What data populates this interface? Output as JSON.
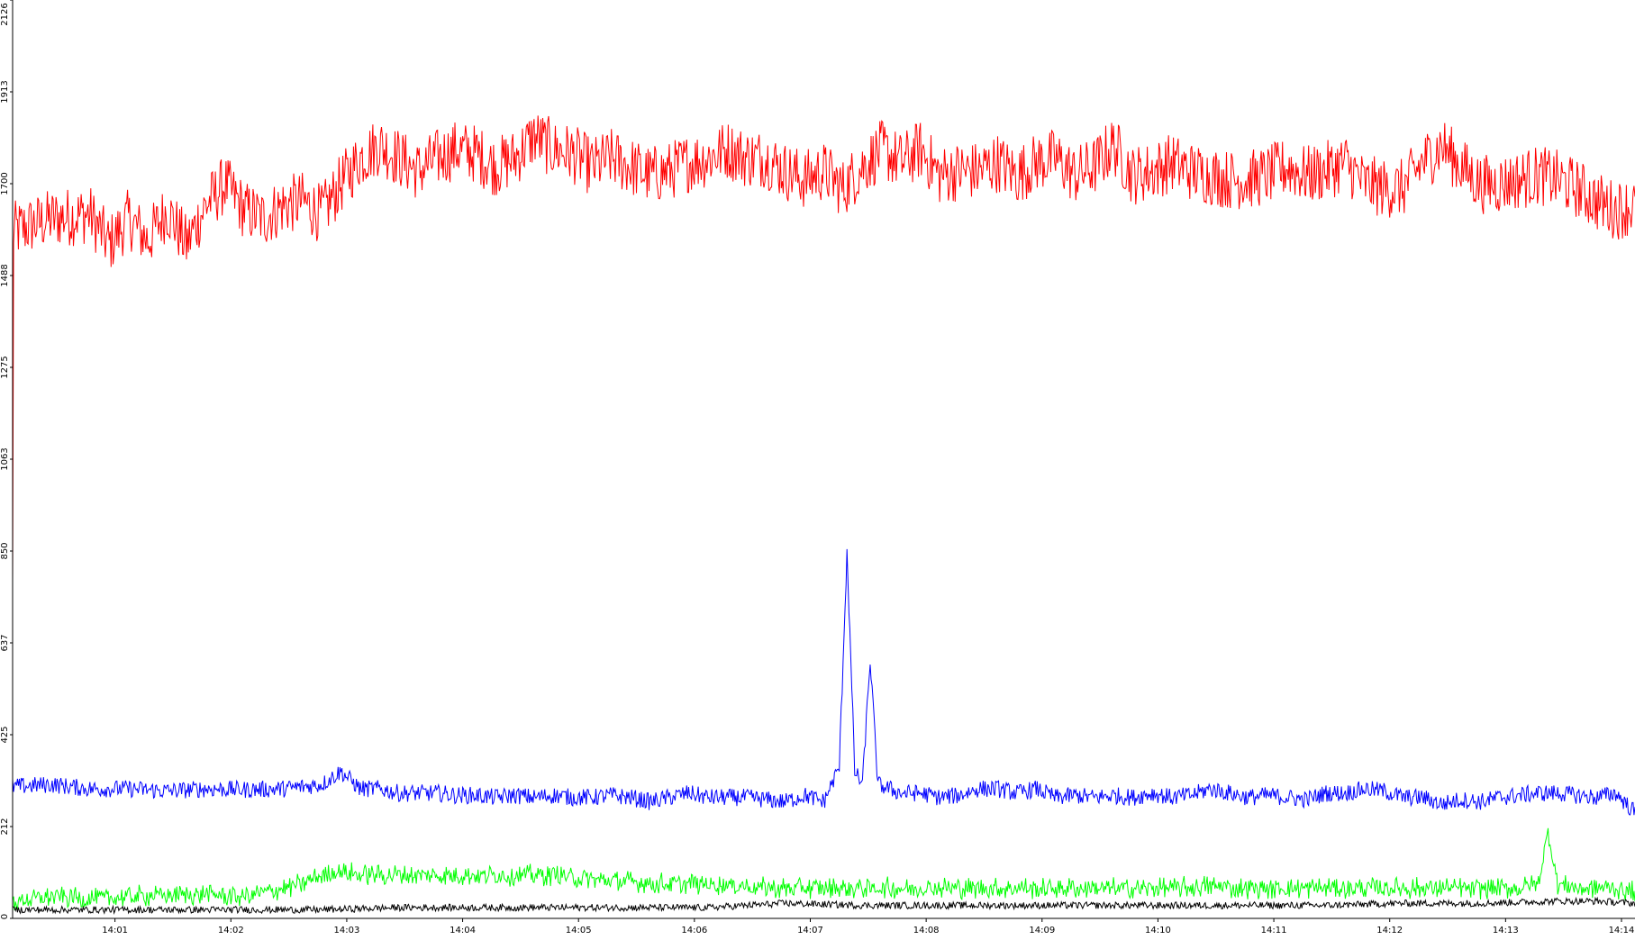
{
  "chart_data": {
    "type": "line",
    "title": "",
    "xlabel": "",
    "ylabel": "",
    "grid": false,
    "legend": "none",
    "x_tick_labels": [
      "14:01",
      "14:02",
      "14:03",
      "14:04",
      "14:05",
      "14:06",
      "14:07",
      "14:08",
      "14:09",
      "14:10",
      "14:11",
      "14:12",
      "14:13",
      "14:14"
    ],
    "y_tick_labels": [
      "0",
      "212",
      "425",
      "637",
      "850",
      "1063",
      "1275",
      "1488",
      "1700",
      "1913",
      "2126"
    ],
    "ylim": [
      0,
      2126
    ],
    "series": [
      {
        "color": "#ff0000",
        "keypoints": [
          [
            0,
            1590
          ],
          [
            20,
            1620
          ],
          [
            40,
            1630
          ],
          [
            50,
            1560
          ],
          [
            60,
            1620
          ],
          [
            70,
            1570
          ],
          [
            80,
            1640
          ],
          [
            90,
            1560
          ],
          [
            100,
            1650
          ],
          [
            110,
            1700
          ],
          [
            120,
            1640
          ],
          [
            130,
            1620
          ],
          [
            140,
            1650
          ],
          [
            150,
            1660
          ],
          [
            160,
            1630
          ],
          [
            170,
            1700
          ],
          [
            180,
            1760
          ],
          [
            190,
            1790
          ],
          [
            200,
            1760
          ],
          [
            210,
            1730
          ],
          [
            220,
            1760
          ],
          [
            230,
            1780
          ],
          [
            240,
            1770
          ],
          [
            250,
            1740
          ],
          [
            260,
            1760
          ],
          [
            270,
            1810
          ],
          [
            280,
            1780
          ],
          [
            290,
            1770
          ],
          [
            300,
            1740
          ],
          [
            310,
            1760
          ],
          [
            320,
            1740
          ],
          [
            330,
            1720
          ],
          [
            340,
            1730
          ],
          [
            350,
            1750
          ],
          [
            360,
            1760
          ],
          [
            370,
            1780
          ],
          [
            380,
            1760
          ],
          [
            390,
            1760
          ],
          [
            400,
            1730
          ],
          [
            410,
            1710
          ],
          [
            420,
            1730
          ],
          [
            430,
            1690
          ],
          [
            440,
            1740
          ],
          [
            450,
            1780
          ],
          [
            460,
            1750
          ],
          [
            470,
            1780
          ],
          [
            480,
            1720
          ],
          [
            490,
            1730
          ],
          [
            500,
            1730
          ],
          [
            510,
            1750
          ],
          [
            520,
            1720
          ],
          [
            530,
            1750
          ],
          [
            540,
            1760
          ],
          [
            550,
            1720
          ],
          [
            560,
            1740
          ],
          [
            570,
            1790
          ],
          [
            580,
            1720
          ],
          [
            590,
            1730
          ],
          [
            600,
            1750
          ],
          [
            610,
            1730
          ],
          [
            620,
            1720
          ],
          [
            630,
            1710
          ],
          [
            640,
            1710
          ],
          [
            650,
            1720
          ],
          [
            660,
            1740
          ],
          [
            670,
            1720
          ],
          [
            680,
            1730
          ],
          [
            690,
            1750
          ],
          [
            700,
            1700
          ],
          [
            710,
            1690
          ],
          [
            720,
            1690
          ],
          [
            730,
            1750
          ],
          [
            740,
            1790
          ],
          [
            750,
            1740
          ],
          [
            760,
            1700
          ],
          [
            770,
            1700
          ],
          [
            780,
            1710
          ],
          [
            790,
            1720
          ],
          [
            800,
            1710
          ],
          [
            810,
            1690
          ],
          [
            820,
            1660
          ],
          [
            830,
            1640
          ],
          [
            840,
            1650
          ]
        ]
      },
      {
        "color": "#0000ff",
        "keypoints": [
          [
            0,
            305
          ],
          [
            20,
            310
          ],
          [
            40,
            300
          ],
          [
            60,
            300
          ],
          [
            80,
            295
          ],
          [
            100,
            300
          ],
          [
            120,
            298
          ],
          [
            140,
            300
          ],
          [
            160,
            310
          ],
          [
            170,
            340
          ],
          [
            180,
            300
          ],
          [
            190,
            300
          ],
          [
            200,
            290
          ],
          [
            210,
            290
          ],
          [
            220,
            290
          ],
          [
            230,
            285
          ],
          [
            240,
            285
          ],
          [
            250,
            280
          ],
          [
            260,
            285
          ],
          [
            270,
            280
          ],
          [
            280,
            285
          ],
          [
            290,
            280
          ],
          [
            300,
            280
          ],
          [
            310,
            285
          ],
          [
            320,
            280
          ],
          [
            330,
            270
          ],
          [
            340,
            280
          ],
          [
            350,
            290
          ],
          [
            360,
            280
          ],
          [
            370,
            280
          ],
          [
            380,
            280
          ],
          [
            390,
            275
          ],
          [
            400,
            270
          ],
          [
            410,
            285
          ],
          [
            420,
            270
          ],
          [
            428,
            350
          ],
          [
            432,
            850
          ],
          [
            436,
            340
          ],
          [
            440,
            310
          ],
          [
            444,
            600
          ],
          [
            448,
            310
          ],
          [
            460,
            290
          ],
          [
            470,
            290
          ],
          [
            480,
            280
          ],
          [
            490,
            285
          ],
          [
            500,
            300
          ],
          [
            510,
            300
          ],
          [
            520,
            290
          ],
          [
            530,
            300
          ],
          [
            540,
            280
          ],
          [
            550,
            285
          ],
          [
            560,
            280
          ],
          [
            570,
            285
          ],
          [
            580,
            280
          ],
          [
            590,
            290
          ],
          [
            600,
            280
          ],
          [
            610,
            285
          ],
          [
            620,
            300
          ],
          [
            630,
            290
          ],
          [
            640,
            280
          ],
          [
            650,
            285
          ],
          [
            660,
            280
          ],
          [
            670,
            275
          ],
          [
            680,
            290
          ],
          [
            690,
            290
          ],
          [
            700,
            300
          ],
          [
            710,
            295
          ],
          [
            720,
            280
          ],
          [
            730,
            280
          ],
          [
            740,
            265
          ],
          [
            750,
            275
          ],
          [
            760,
            270
          ],
          [
            770,
            280
          ],
          [
            780,
            285
          ],
          [
            790,
            290
          ],
          [
            800,
            290
          ],
          [
            810,
            285
          ],
          [
            820,
            280
          ],
          [
            830,
            290
          ],
          [
            840,
            245
          ]
        ]
      },
      {
        "color": "#00ff00",
        "keypoints": [
          [
            0,
            40
          ],
          [
            20,
            50
          ],
          [
            40,
            45
          ],
          [
            60,
            50
          ],
          [
            80,
            55
          ],
          [
            100,
            55
          ],
          [
            120,
            50
          ],
          [
            130,
            60
          ],
          [
            140,
            70
          ],
          [
            150,
            80
          ],
          [
            160,
            100
          ],
          [
            170,
            110
          ],
          [
            180,
            100
          ],
          [
            200,
            100
          ],
          [
            220,
            100
          ],
          [
            240,
            100
          ],
          [
            260,
            100
          ],
          [
            280,
            100
          ],
          [
            300,
            90
          ],
          [
            320,
            85
          ],
          [
            340,
            80
          ],
          [
            360,
            80
          ],
          [
            380,
            75
          ],
          [
            400,
            70
          ],
          [
            420,
            70
          ],
          [
            440,
            70
          ],
          [
            460,
            70
          ],
          [
            480,
            70
          ],
          [
            500,
            70
          ],
          [
            520,
            70
          ],
          [
            540,
            70
          ],
          [
            560,
            70
          ],
          [
            580,
            70
          ],
          [
            600,
            70
          ],
          [
            620,
            75
          ],
          [
            640,
            70
          ],
          [
            660,
            70
          ],
          [
            680,
            70
          ],
          [
            700,
            70
          ],
          [
            720,
            70
          ],
          [
            740,
            70
          ],
          [
            760,
            70
          ],
          [
            780,
            70
          ],
          [
            790,
            80
          ],
          [
            795,
            200
          ],
          [
            800,
            80
          ],
          [
            810,
            70
          ],
          [
            820,
            70
          ],
          [
            830,
            70
          ],
          [
            840,
            60
          ]
        ]
      },
      {
        "color": "#000000",
        "keypoints": [
          [
            0,
            20
          ],
          [
            40,
            20
          ],
          [
            80,
            20
          ],
          [
            120,
            20
          ],
          [
            160,
            20
          ],
          [
            200,
            25
          ],
          [
            240,
            25
          ],
          [
            280,
            25
          ],
          [
            320,
            25
          ],
          [
            360,
            25
          ],
          [
            400,
            35
          ],
          [
            440,
            30
          ],
          [
            480,
            30
          ],
          [
            520,
            30
          ],
          [
            560,
            30
          ],
          [
            600,
            30
          ],
          [
            640,
            30
          ],
          [
            680,
            30
          ],
          [
            720,
            35
          ],
          [
            760,
            35
          ],
          [
            800,
            40
          ],
          [
            820,
            40
          ],
          [
            840,
            35
          ]
        ]
      }
    ]
  }
}
